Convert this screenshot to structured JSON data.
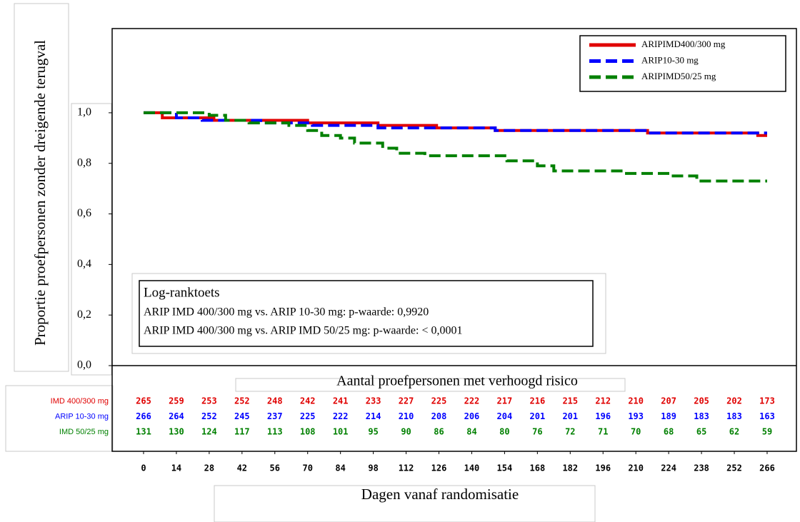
{
  "chart_data": {
    "type": "line",
    "step": true,
    "y_label": "Proportie proefpersonen zonder dreigende terugval",
    "x_label": "Dagen vanaf randomisatie",
    "xlim": [
      -13.4,
      278.5
    ],
    "xticks": [
      0,
      14,
      28,
      42,
      56,
      70,
      84,
      98,
      112,
      126,
      140,
      154,
      168,
      182,
      196,
      210,
      224,
      238,
      252,
      266
    ],
    "ylim": [
      0,
      1.333
    ],
    "yticks": [
      {
        "value": 0,
        "label": "0,0"
      },
      {
        "value": 0.2,
        "label": "0,2"
      },
      {
        "value": 0.4,
        "label": "0,4"
      },
      {
        "value": 0.6,
        "label": "0,6"
      },
      {
        "value": 0.8,
        "label": "0,8"
      },
      {
        "value": 1.0,
        "label": "1,0"
      }
    ],
    "grid": false,
    "legend": "top-right",
    "series": [
      {
        "name": "ARIPIMD400/300 mg",
        "color": "#e00000",
        "style": "solid",
        "x": [
          0,
          8,
          8,
          30,
          30,
          70,
          70,
          100,
          100,
          125,
          125,
          150,
          150,
          215,
          215,
          262,
          262,
          266
        ],
        "values": [
          1,
          1,
          0.98,
          0.98,
          0.97,
          0.97,
          0.96,
          0.96,
          0.95,
          0.95,
          0.94,
          0.94,
          0.93,
          0.93,
          0.92,
          0.92,
          0.91,
          0.91
        ]
      },
      {
        "name": "ARIP10-30 mg",
        "color": "#0000ff",
        "style": "dashed",
        "x": [
          0,
          14,
          14,
          25,
          25,
          50,
          50,
          72,
          72,
          100,
          100,
          150,
          150,
          215,
          215,
          266
        ],
        "values": [
          1,
          1,
          0.98,
          0.98,
          0.97,
          0.97,
          0.96,
          0.96,
          0.95,
          0.95,
          0.94,
          0.94,
          0.93,
          0.93,
          0.92,
          0.92
        ]
      },
      {
        "name": "ARIPIMD50/25 mg",
        "color": "#008000",
        "style": "dashed",
        "x": [
          0,
          28,
          28,
          35,
          35,
          45,
          45,
          62,
          62,
          70,
          70,
          76,
          76,
          84,
          84,
          90,
          90,
          102,
          102,
          108,
          108,
          120,
          120,
          155,
          155,
          168,
          168,
          175,
          175,
          206,
          206,
          225,
          225,
          236,
          236,
          266
        ],
        "values": [
          1,
          1,
          0.99,
          0.99,
          0.97,
          0.97,
          0.96,
          0.96,
          0.95,
          0.95,
          0.93,
          0.93,
          0.91,
          0.91,
          0.9,
          0.9,
          0.88,
          0.88,
          0.86,
          0.86,
          0.84,
          0.84,
          0.83,
          0.83,
          0.81,
          0.81,
          0.79,
          0.79,
          0.77,
          0.77,
          0.76,
          0.76,
          0.75,
          0.75,
          0.73,
          0.73
        ]
      }
    ],
    "annotation": {
      "title": "Log-ranktoets",
      "lines": [
        "ARIP IMD 400/300 mg vs. ARIP 10-30 mg: p-waarde: 0,9920",
        "ARIP IMD 400/300 mg vs. ARIP IMD 50/25 mg: p-waarde: < 0,0001"
      ]
    },
    "risk_table": {
      "title": "Aantal proefpersonen met verhoogd risico",
      "rows": [
        {
          "label": "IMD 400/300 mg",
          "color": "#e00000",
          "values": [
            265,
            259,
            253,
            252,
            248,
            242,
            241,
            233,
            227,
            225,
            222,
            217,
            216,
            215,
            212,
            210,
            207,
            205,
            202,
            173
          ]
        },
        {
          "label": "ARIP 10-30 mg",
          "color": "#0000ff",
          "values": [
            266,
            264,
            252,
            245,
            237,
            225,
            222,
            214,
            210,
            208,
            206,
            204,
            201,
            201,
            196,
            193,
            189,
            183,
            183,
            163
          ]
        },
        {
          "label": "IMD 50/25 mg",
          "color": "#008000",
          "values": [
            131,
            130,
            124,
            117,
            113,
            108,
            101,
            95,
            90,
            86,
            84,
            80,
            76,
            72,
            71,
            70,
            68,
            65,
            62,
            59
          ]
        }
      ]
    }
  }
}
